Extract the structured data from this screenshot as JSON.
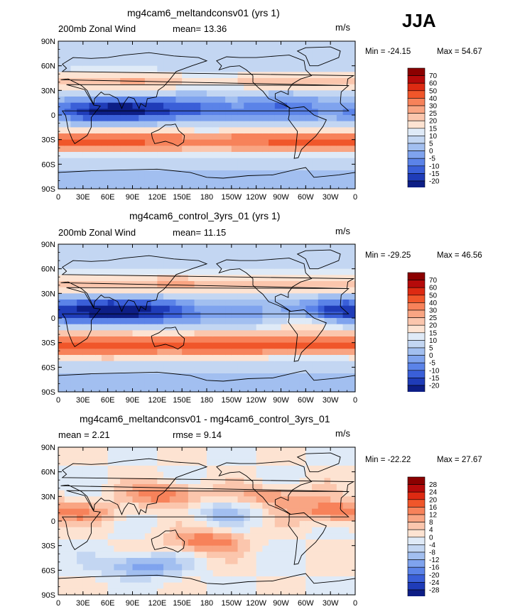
{
  "page_title": "JJA",
  "chart_data": [
    {
      "type": "heatmap",
      "title": "mg4cam6_meltandconsv01 (yrs 1)",
      "left_label": "200mb Zonal Wind",
      "center_label": "mean=  13.36",
      "units": "m/s",
      "min_label": "Min = -24.15",
      "max_label": "Max =  54.67",
      "colorbar_levels": [
        "70",
        "60",
        "50",
        "40",
        "30",
        "25",
        "20",
        "15",
        "10",
        "5",
        "0",
        "-5",
        "-10",
        "-15",
        "-20"
      ],
      "colorbar_colors": [
        "#8b0000",
        "#b50a0a",
        "#dd2a12",
        "#f0562a",
        "#f7825a",
        "#f9a583",
        "#fbc6ad",
        "#fde3d2",
        "#dfeaf7",
        "#c3d6f2",
        "#a2bff0",
        "#7fa3ee",
        "#5b83e8",
        "#3a5fd8",
        "#1f3cb8",
        "#0d1e86"
      ],
      "xlim": [
        0,
        360
      ],
      "ylim": [
        -90,
        90
      ],
      "x_ticks": [
        "0",
        "30E",
        "60E",
        "90E",
        "120E",
        "150E",
        "180",
        "150W",
        "120W",
        "90W",
        "60W",
        "30W",
        "0"
      ],
      "y_ticks": [
        "90N",
        "60N",
        "30N",
        "0",
        "30S",
        "60S",
        "90S"
      ],
      "field": [
        {
          "lon": 50,
          "lat": 5,
          "value": -20
        },
        {
          "lon": 100,
          "lat": 8,
          "value": -15
        },
        {
          "lon": 160,
          "lat": 10,
          "value": -10
        },
        {
          "lon": 270,
          "lat": 12,
          "value": -10
        },
        {
          "lon": 180,
          "lat": -30,
          "value": 30
        },
        {
          "lon": 60,
          "lat": -35,
          "value": 40
        },
        {
          "lon": 100,
          "lat": 40,
          "value": 25
        },
        {
          "lon": 320,
          "lat": 45,
          "value": 20
        },
        {
          "lon": 180,
          "lat": 45,
          "value": 15
        }
      ]
    },
    {
      "type": "heatmap",
      "title": "mg4cam6_control_3yrs_01 (yrs 1)",
      "left_label": "200mb Zonal Wind",
      "center_label": "mean=  11.15",
      "units": "m/s",
      "min_label": "Min = -29.25",
      "max_label": "Max =  46.56",
      "colorbar_levels": [
        "70",
        "60",
        "50",
        "40",
        "30",
        "25",
        "20",
        "15",
        "10",
        "5",
        "0",
        "-5",
        "-10",
        "-15",
        "-20"
      ],
      "colorbar_colors": [
        "#8b0000",
        "#b50a0a",
        "#dd2a12",
        "#f0562a",
        "#f7825a",
        "#f9a583",
        "#fbc6ad",
        "#fde3d2",
        "#dfeaf7",
        "#c3d6f2",
        "#a2bff0",
        "#7fa3ee",
        "#5b83e8",
        "#3a5fd8",
        "#1f3cb8",
        "#0d1e86"
      ],
      "xlim": [
        0,
        360
      ],
      "ylim": [
        -90,
        90
      ],
      "x_ticks": [
        "0",
        "30E",
        "60E",
        "90E",
        "120E",
        "150E",
        "180",
        "150W",
        "120W",
        "90W",
        "60W",
        "30W",
        "0"
      ],
      "y_ticks": [
        "90N",
        "60N",
        "30N",
        "0",
        "30S",
        "60S",
        "90S"
      ],
      "field": [
        {
          "lon": 60,
          "lat": 10,
          "value": -25
        },
        {
          "lon": 120,
          "lat": 10,
          "value": -15
        },
        {
          "lon": 340,
          "lat": 10,
          "value": -20
        },
        {
          "lon": 200,
          "lat": -40,
          "value": 35
        },
        {
          "lon": 60,
          "lat": -40,
          "value": 40
        },
        {
          "lon": 140,
          "lat": 40,
          "value": 25
        },
        {
          "lon": 300,
          "lat": -5,
          "value": 15
        }
      ]
    },
    {
      "type": "heatmap",
      "title": "mg4cam6_meltandconsv01 - mg4cam6_control_3yrs_01",
      "left_label": "mean =   2.21",
      "center_label": "rmse =   9.14",
      "units": "m/s",
      "min_label": "Min = -22.22",
      "max_label": "Max =  27.67",
      "colorbar_levels": [
        "28",
        "24",
        "20",
        "16",
        "12",
        "8",
        "4",
        "0",
        "-4",
        "-8",
        "-12",
        "-16",
        "-20",
        "-24",
        "-28"
      ],
      "colorbar_colors": [
        "#8b0000",
        "#b50a0a",
        "#dd2a12",
        "#f0562a",
        "#f7825a",
        "#f9a583",
        "#fbc6ad",
        "#fde3d2",
        "#dfeaf7",
        "#c3d6f2",
        "#a2bff0",
        "#7fa3ee",
        "#5b83e8",
        "#3a5fd8",
        "#1f3cb8",
        "#0d1e86"
      ],
      "xlim": [
        0,
        360
      ],
      "ylim": [
        -90,
        90
      ],
      "x_ticks": [
        "0",
        "30E",
        "60E",
        "90E",
        "120E",
        "150E",
        "180",
        "150W",
        "120W",
        "90W",
        "60W",
        "30W",
        "0"
      ],
      "y_ticks": [
        "90N",
        "60N",
        "30N",
        "0",
        "30S",
        "60S",
        "90S"
      ],
      "field": [
        {
          "lon": 130,
          "lat": 32,
          "value": 16
        },
        {
          "lon": 260,
          "lat": 30,
          "value": 12
        },
        {
          "lon": 330,
          "lat": 12,
          "value": 16
        },
        {
          "lon": 180,
          "lat": -25,
          "value": 16
        },
        {
          "lon": 100,
          "lat": -55,
          "value": -16
        },
        {
          "lon": 200,
          "lat": 10,
          "value": -8
        },
        {
          "lon": 40,
          "lat": 10,
          "value": 8
        }
      ]
    }
  ]
}
